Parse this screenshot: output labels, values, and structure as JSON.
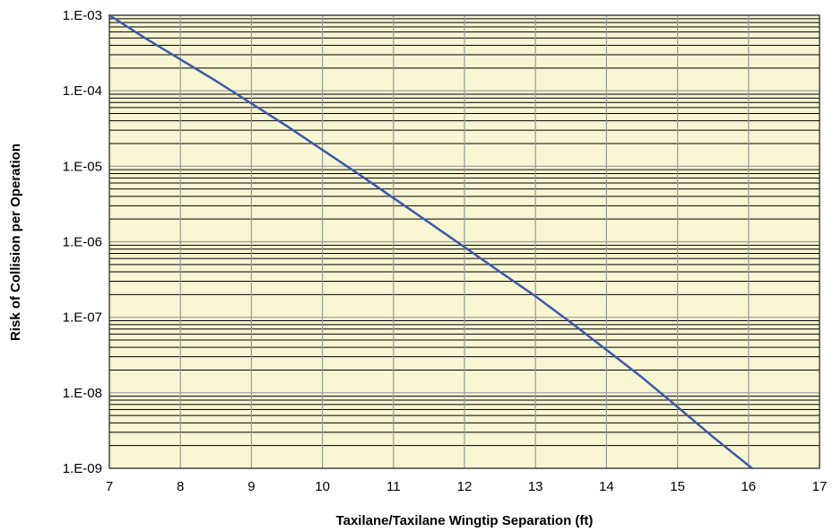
{
  "chart_data": {
    "type": "line",
    "title": "",
    "xlabel": "Taxilane/Taxilane Wingtip Separation (ft)",
    "ylabel": "Risk of Collision per Operation",
    "x_ticks": [
      "7",
      "8",
      "9",
      "10",
      "11",
      "12",
      "13",
      "14",
      "15",
      "16",
      "17"
    ],
    "y_ticks": [
      "1.E-09",
      "1.E-08",
      "1.E-07",
      "1.E-06",
      "1.E-05",
      "1.E-04",
      "1.E-03"
    ],
    "xlim": [
      7,
      17
    ],
    "ylim": [
      1e-09,
      0.001
    ],
    "y_scale": "log",
    "grid": true,
    "legend": "none",
    "colors": {
      "plot_background": "#f8f5d2",
      "grid_major": "#9a9a9a",
      "grid_minor": "#000000",
      "line": "#3a5ba8"
    },
    "series": [
      {
        "x": [
          7.0,
          7.5,
          8.0,
          8.5,
          9.0,
          9.5,
          10.0,
          10.5,
          11.0,
          11.5,
          12.0,
          12.5,
          13.0,
          13.5,
          14.0,
          14.5,
          15.0,
          15.5,
          16.05
        ],
        "y": [
          0.001,
          0.0005,
          0.00026,
          0.000135,
          6.8e-05,
          3.4e-05,
          1.65e-05,
          8e-06,
          3.8e-06,
          1.8e-06,
          8.5e-07,
          4e-07,
          1.9e-07,
          8.5e-08,
          3.7e-08,
          1.6e-08,
          6.5e-09,
          2.6e-09,
          1e-09
        ]
      }
    ]
  }
}
